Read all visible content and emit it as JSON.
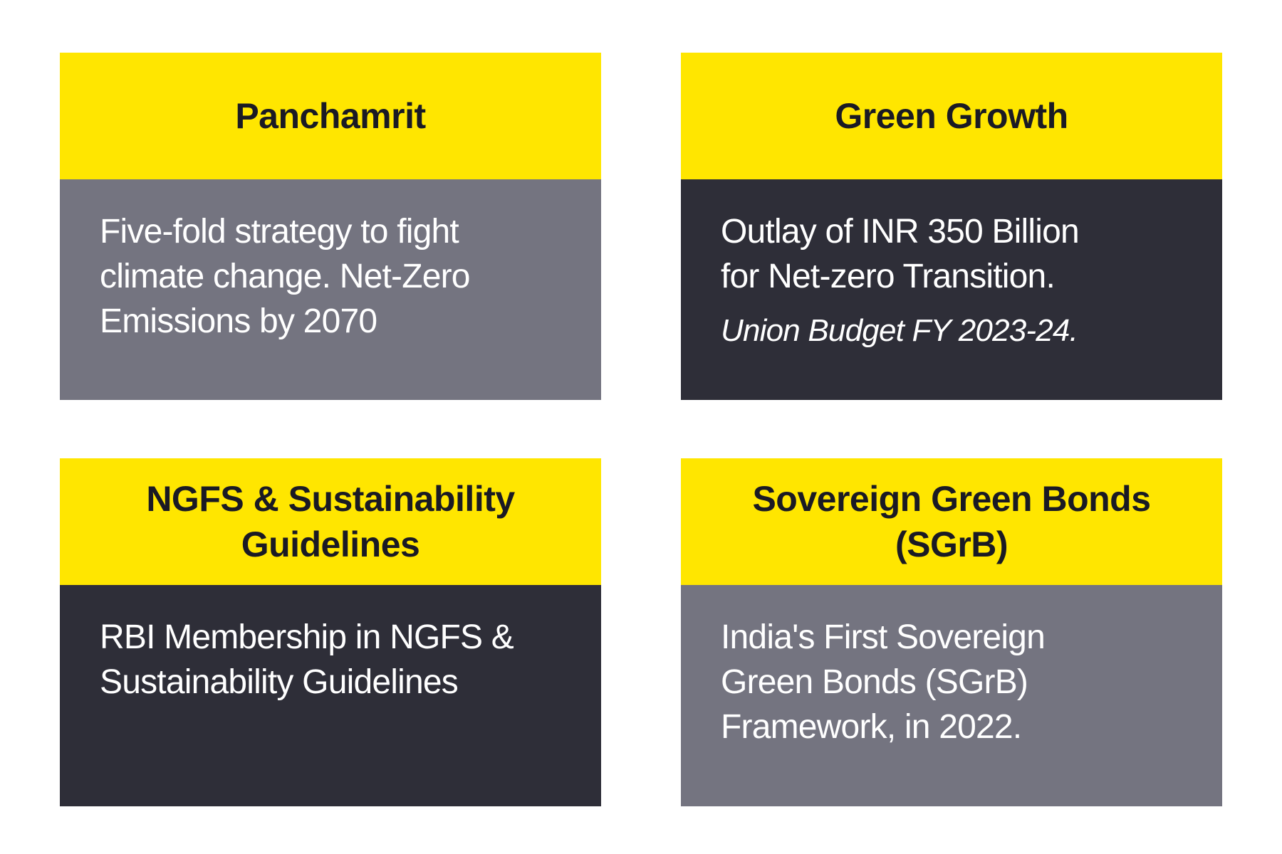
{
  "colors": {
    "background": "#FFFFFF",
    "header_yellow": "#FFE600",
    "body_gray": "#747480",
    "body_dark": "#2E2E38",
    "header_text": "#1A1A24",
    "body_text": "#FFFFFF"
  },
  "cards": [
    {
      "title": "Panchamrit",
      "title_lines": [
        "Panchamrit"
      ],
      "body_variant": "gray",
      "body_lines": [
        "Five-fold strategy to fight",
        "climate change. Net-Zero",
        "Emissions by 2070"
      ]
    },
    {
      "title": "Green Growth",
      "title_lines": [
        "Green Growth"
      ],
      "body_variant": "dark",
      "body_lines": [
        "Outlay of INR 350 Billion",
        "for Net-zero Transition."
      ],
      "note": "Union Budget FY 2023-24."
    },
    {
      "title": "NGFS & Sustainability Guidelines",
      "title_lines": [
        "NGFS & Sustainability",
        "Guidelines"
      ],
      "body_variant": "dark",
      "body_lines": [
        "RBI Membership in NGFS &",
        "Sustainability Guidelines"
      ]
    },
    {
      "title": "Sovereign Green Bonds (SGrB)",
      "title_lines": [
        "Sovereign Green Bonds",
        "(SGrB)"
      ],
      "body_variant": "gray",
      "body_lines": [
        "India's First Sovereign",
        "Green Bonds (SGrB)",
        "Framework, in 2022."
      ]
    }
  ]
}
